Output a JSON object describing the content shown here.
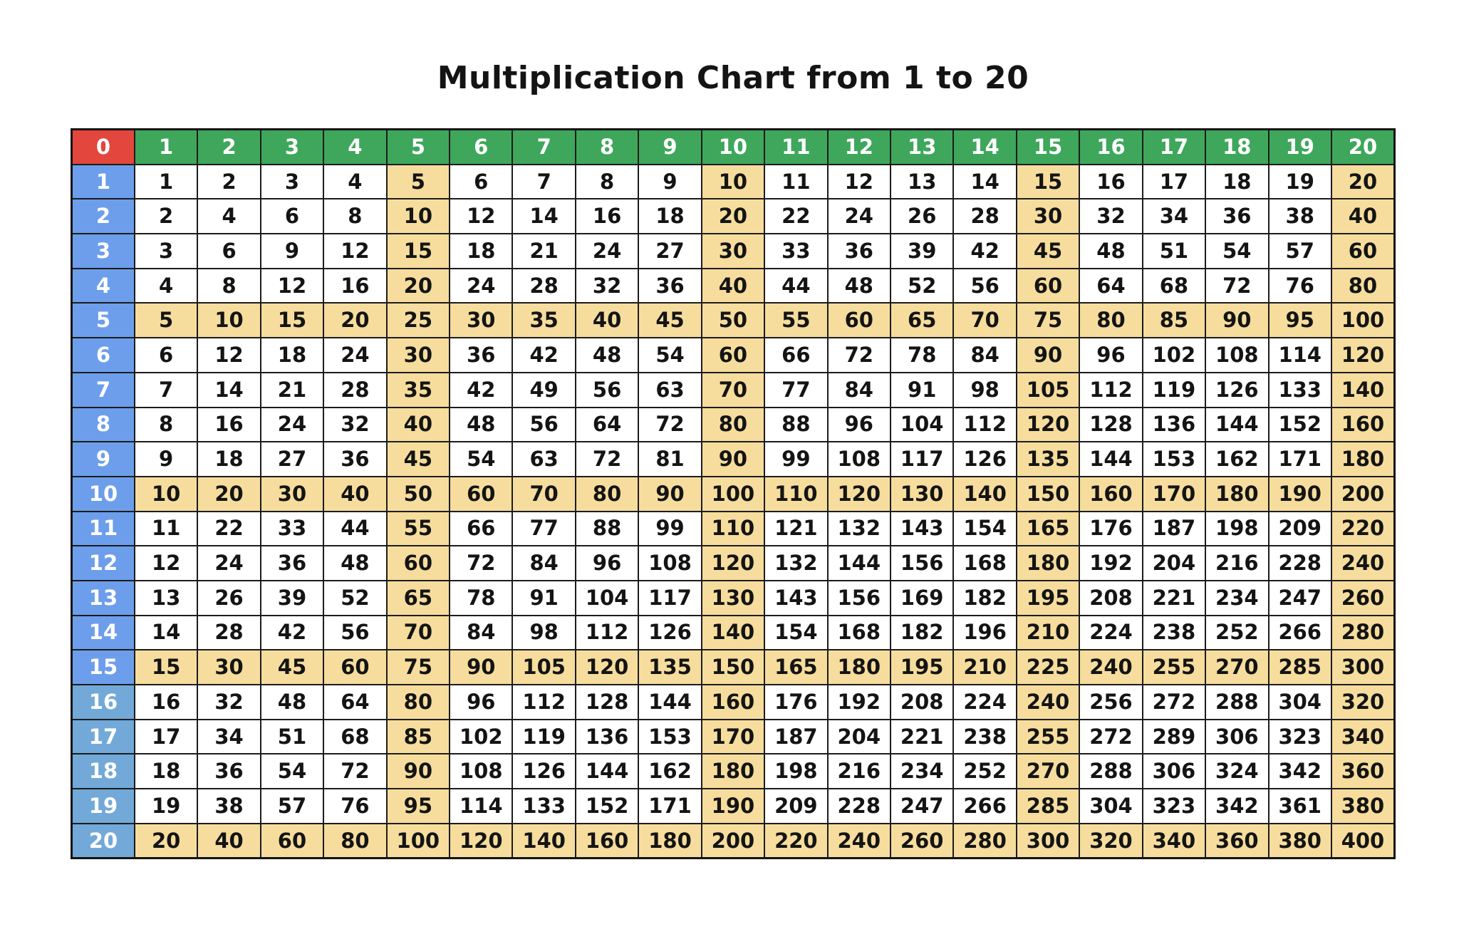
{
  "title": "Multiplication Chart from 1 to 20",
  "colors": {
    "corner_bg": "#e2463d",
    "column_header_bg": "#3ea75b",
    "row_header_bg_rows_1_15": "#6d9eeb",
    "row_header_bg_rows_16_20": "#72a9d8",
    "highlight_bg": "#f6dd9d",
    "cell_bg": "#ffffff",
    "header_text": "#ffffff",
    "cell_text": "#141414",
    "border": "#1c1c1c"
  },
  "chart_data": {
    "type": "table",
    "title": "Multiplication Chart from 1 to 20",
    "corner_label": "0",
    "column_headers": [
      1,
      2,
      3,
      4,
      5,
      6,
      7,
      8,
      9,
      10,
      11,
      12,
      13,
      14,
      15,
      16,
      17,
      18,
      19,
      20
    ],
    "row_headers": [
      1,
      2,
      3,
      4,
      5,
      6,
      7,
      8,
      9,
      10,
      11,
      12,
      13,
      14,
      15,
      16,
      17,
      18,
      19,
      20
    ],
    "values": [
      [
        1,
        2,
        3,
        4,
        5,
        6,
        7,
        8,
        9,
        10,
        11,
        12,
        13,
        14,
        15,
        16,
        17,
        18,
        19,
        20
      ],
      [
        2,
        4,
        6,
        8,
        10,
        12,
        14,
        16,
        18,
        20,
        22,
        24,
        26,
        28,
        30,
        32,
        34,
        36,
        38,
        40
      ],
      [
        3,
        6,
        9,
        12,
        15,
        18,
        21,
        24,
        27,
        30,
        33,
        36,
        39,
        42,
        45,
        48,
        51,
        54,
        57,
        60
      ],
      [
        4,
        8,
        12,
        16,
        20,
        24,
        28,
        32,
        36,
        40,
        44,
        48,
        52,
        56,
        60,
        64,
        68,
        72,
        76,
        80
      ],
      [
        5,
        10,
        15,
        20,
        25,
        30,
        35,
        40,
        45,
        50,
        55,
        60,
        65,
        70,
        75,
        80,
        85,
        90,
        95,
        100
      ],
      [
        6,
        12,
        18,
        24,
        30,
        36,
        42,
        48,
        54,
        60,
        66,
        72,
        78,
        84,
        90,
        96,
        102,
        108,
        114,
        120
      ],
      [
        7,
        14,
        21,
        28,
        35,
        42,
        49,
        56,
        63,
        70,
        77,
        84,
        91,
        98,
        105,
        112,
        119,
        126,
        133,
        140
      ],
      [
        8,
        16,
        24,
        32,
        40,
        48,
        56,
        64,
        72,
        80,
        88,
        96,
        104,
        112,
        120,
        128,
        136,
        144,
        152,
        160
      ],
      [
        9,
        18,
        27,
        36,
        45,
        54,
        63,
        72,
        81,
        90,
        99,
        108,
        117,
        126,
        135,
        144,
        153,
        162,
        171,
        180
      ],
      [
        10,
        20,
        30,
        40,
        50,
        60,
        70,
        80,
        90,
        100,
        110,
        120,
        130,
        140,
        150,
        160,
        170,
        180,
        190,
        200
      ],
      [
        11,
        22,
        33,
        44,
        55,
        66,
        77,
        88,
        99,
        110,
        121,
        132,
        143,
        154,
        165,
        176,
        187,
        198,
        209,
        220
      ],
      [
        12,
        24,
        36,
        48,
        60,
        72,
        84,
        96,
        108,
        120,
        132,
        144,
        156,
        168,
        180,
        192,
        204,
        216,
        228,
        240
      ],
      [
        13,
        26,
        39,
        52,
        65,
        78,
        91,
        104,
        117,
        130,
        143,
        156,
        169,
        182,
        195,
        208,
        221,
        234,
        247,
        260
      ],
      [
        14,
        28,
        42,
        56,
        70,
        84,
        98,
        112,
        126,
        140,
        154,
        168,
        182,
        196,
        210,
        224,
        238,
        252,
        266,
        280
      ],
      [
        15,
        30,
        45,
        60,
        75,
        90,
        105,
        120,
        135,
        150,
        165,
        180,
        195,
        210,
        225,
        240,
        255,
        270,
        285,
        300
      ],
      [
        16,
        32,
        48,
        64,
        80,
        96,
        112,
        128,
        144,
        160,
        176,
        192,
        208,
        224,
        240,
        256,
        272,
        288,
        304,
        320
      ],
      [
        17,
        34,
        51,
        68,
        85,
        102,
        119,
        136,
        153,
        170,
        187,
        204,
        221,
        238,
        255,
        272,
        289,
        306,
        323,
        340
      ],
      [
        18,
        36,
        54,
        72,
        90,
        108,
        126,
        144,
        162,
        180,
        198,
        216,
        234,
        252,
        270,
        288,
        306,
        324,
        342,
        360
      ],
      [
        19,
        38,
        57,
        76,
        95,
        114,
        133,
        152,
        171,
        190,
        209,
        228,
        247,
        266,
        285,
        304,
        323,
        342,
        361,
        380
      ],
      [
        20,
        40,
        60,
        80,
        100,
        120,
        140,
        160,
        180,
        200,
        220,
        240,
        260,
        280,
        300,
        320,
        340,
        360,
        380,
        400
      ]
    ],
    "highlight_rule": "rows and columns whose header is a multiple of 5 are shaded tan",
    "layout_hints": {
      "grid": "on",
      "legend": "none",
      "title_position": "top-center"
    }
  }
}
